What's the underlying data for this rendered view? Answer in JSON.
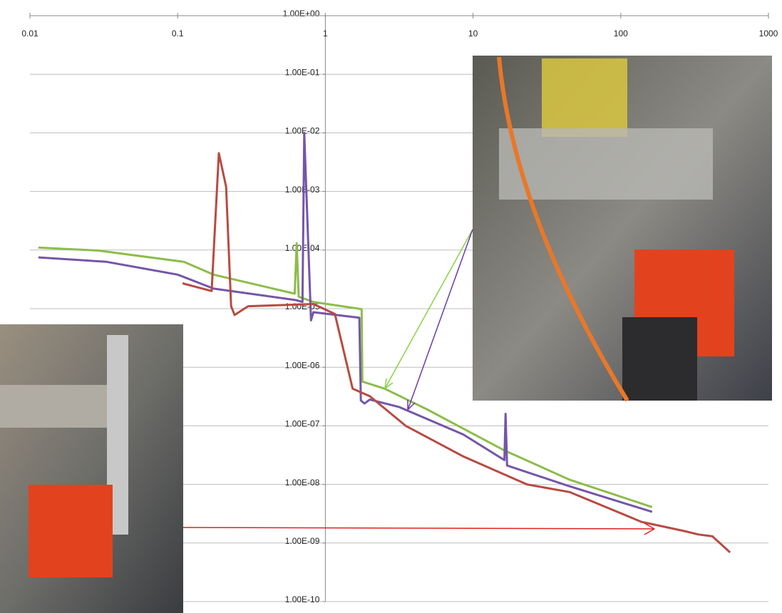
{
  "chart_data": {
    "type": "line",
    "log_x": true,
    "log_y": true,
    "grid": true,
    "xlim": [
      0.01,
      1000
    ],
    "xticks": [
      0.01,
      0.1,
      1,
      10,
      100,
      1000
    ],
    "ylim": [
      1e-10,
      1
    ],
    "yticks": [
      {
        "value": 1,
        "label": "1.00E+00"
      },
      {
        "value": 0.1,
        "label": "1.00E-01"
      },
      {
        "value": 0.01,
        "label": "1.00E-02"
      },
      {
        "value": 0.001,
        "label": "1.00E-03"
      },
      {
        "value": 0.0001,
        "label": "1.00E-04"
      },
      {
        "value": 1e-05,
        "label": "1.00E-05"
      },
      {
        "value": 1e-06,
        "label": "1.00E-06"
      },
      {
        "value": 1e-07,
        "label": "1.00E-07"
      },
      {
        "value": 1e-08,
        "label": "1.00E-08"
      },
      {
        "value": 1e-09,
        "label": "1.00E-09"
      },
      {
        "value": 1e-10,
        "label": "1.00E-10"
      }
    ],
    "series": [
      {
        "color": "#8cbd4a",
        "x": [
          0.0114,
          0.029,
          0.11,
          0.175,
          0.62,
          0.64,
          0.66,
          0.83,
          1.76,
          1.78,
          2.52,
          4.9,
          16.3,
          45.2,
          163
        ],
        "values": [
          0.00011,
          9.8e-05,
          6.3e-05,
          3.8e-05,
          1.8e-05,
          0.00013,
          1.6e-05,
          1.3e-05,
          9.8e-06,
          5.7e-07,
          4.3e-07,
          1.9e-07,
          3.8e-08,
          1.2e-08,
          4.1e-09
        ]
      },
      {
        "color": "#7456a8",
        "x": [
          0.0114,
          0.033,
          0.1,
          0.175,
          0.63,
          0.7,
          0.72,
          0.8,
          0.83,
          1.7,
          1.74,
          1.84,
          2.0,
          3.15,
          8.6,
          16.3,
          16.6,
          17,
          45,
          163
        ],
        "values": [
          7.5e-05,
          6.3e-05,
          3.8e-05,
          2.2e-05,
          1.4e-05,
          1.3e-05,
          0.01,
          6.3e-06,
          8.7e-06,
          7e-06,
          2.7e-07,
          2.4e-07,
          2.8e-07,
          2.1e-07,
          7.1e-08,
          2.6e-08,
          1.6e-07,
          2.1e-08,
          9.3e-09,
          3.4e-09
        ]
      },
      {
        "color": "#b84a42",
        "x": [
          0.108,
          0.17,
          0.19,
          0.213,
          0.23,
          0.243,
          0.3,
          0.83,
          1.16,
          1.53,
          2.0,
          3.5,
          8.6,
          23.2,
          45,
          138,
          269,
          335,
          417,
          550
        ],
        "values": [
          2.7e-05,
          2e-05,
          0.0045,
          0.0012,
          1.1e-05,
          7.8e-06,
          1.1e-05,
          1.2e-05,
          8.1e-06,
          4.3e-07,
          3.2e-07,
          1e-07,
          3e-08,
          1e-08,
          7.4e-09,
          2.3e-09,
          1.6e-09,
          1.4e-09,
          1.3e-09,
          6.9e-10
        ]
      }
    ]
  }
}
